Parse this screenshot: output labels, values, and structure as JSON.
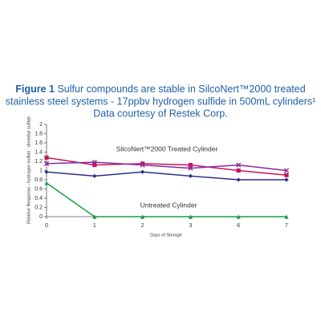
{
  "chart_data": {
    "type": "line",
    "figure_label": "Figure 1",
    "title_lines": [
      "Sulfur compounds are stable in SilcoNert™2000 treated",
      "stainless steel systems - 17ppbv hydrogen sulfide in 500mL cylinders¹",
      "Data courtesy of Restek Corp."
    ],
    "xlabel": "Days of Storage",
    "ylabel": "Relative Response - hydrogen sulfide : dimethyl sulfide",
    "annotations": [
      "SilcoNert™2000 Treated Cylinder",
      "Untreated Cylinder"
    ],
    "categories": [
      "0",
      "1",
      "2",
      "3",
      "6",
      "7"
    ],
    "ylim": [
      0,
      2
    ],
    "yticks": [
      0,
      0.2,
      0.4,
      0.6,
      0.8,
      1,
      1.2,
      1.4,
      1.6,
      1.8,
      2
    ],
    "series": [
      {
        "color": "#c4175a",
        "marker": "square",
        "values": [
          1.28,
          1.12,
          1.15,
          1.12,
          1.0,
          0.9
        ]
      },
      {
        "color": "#8a2a9e",
        "marker": "x",
        "values": [
          1.15,
          1.18,
          1.12,
          1.05,
          1.12,
          1.0
        ]
      },
      {
        "color": "#2b2f86",
        "marker": "diamond",
        "values": [
          0.97,
          0.88,
          0.97,
          0.88,
          0.8,
          0.8
        ]
      },
      {
        "color": "#19a040",
        "marker": "triangle",
        "values": [
          0.73,
          0,
          0,
          0,
          0,
          0
        ]
      }
    ]
  }
}
